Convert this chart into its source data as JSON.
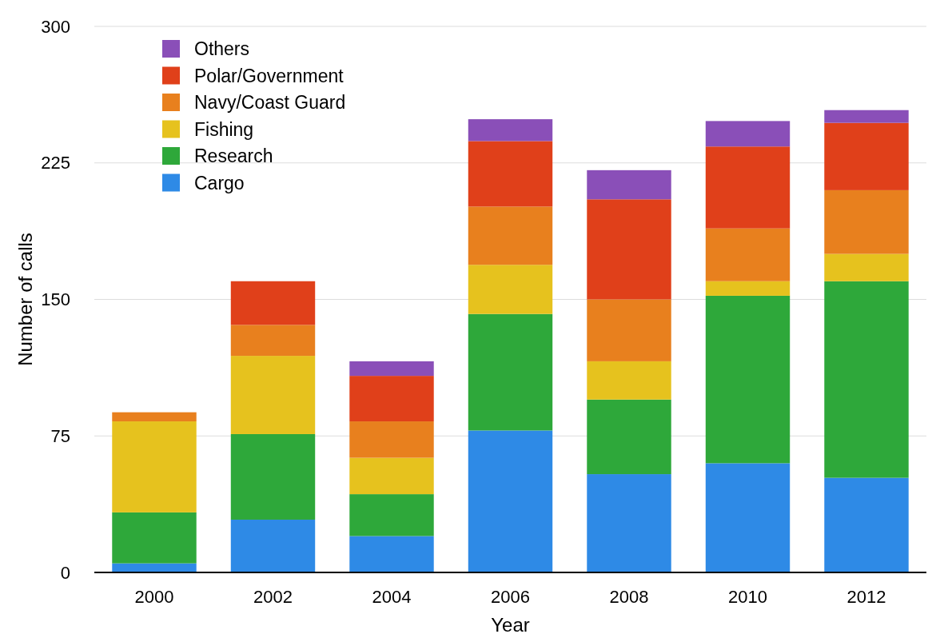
{
  "chart_data": {
    "type": "bar",
    "stacked": true,
    "xlabel": "Year",
    "ylabel": "Number of calls",
    "categories": [
      "2000",
      "2002",
      "2004",
      "2006",
      "2008",
      "2010",
      "2012"
    ],
    "series": [
      {
        "name": "Cargo",
        "color": "#2e8ae6",
        "values": [
          5,
          29,
          20,
          78,
          54,
          60,
          52
        ]
      },
      {
        "name": "Research",
        "color": "#2ea83a",
        "values": [
          28,
          47,
          23,
          64,
          41,
          92,
          108
        ]
      },
      {
        "name": "Fishing",
        "color": "#e6c21e",
        "values": [
          50,
          43,
          20,
          27,
          21,
          8,
          15
        ]
      },
      {
        "name": "Navy/Coast Guard",
        "color": "#e8801e",
        "values": [
          5,
          17,
          20,
          32,
          34,
          29,
          35
        ]
      },
      {
        "name": "Polar/Government",
        "color": "#e0401a",
        "values": [
          null,
          24,
          25,
          36,
          55,
          45,
          37
        ]
      },
      {
        "name": "Others",
        "color": "#8a4fb8",
        "values": [
          null,
          null,
          8,
          12,
          16,
          14,
          7
        ]
      }
    ],
    "ylim": [
      0,
      300
    ],
    "yticks": [
      0,
      75,
      150,
      225,
      300
    ],
    "grid": "y",
    "legend": "top left"
  }
}
